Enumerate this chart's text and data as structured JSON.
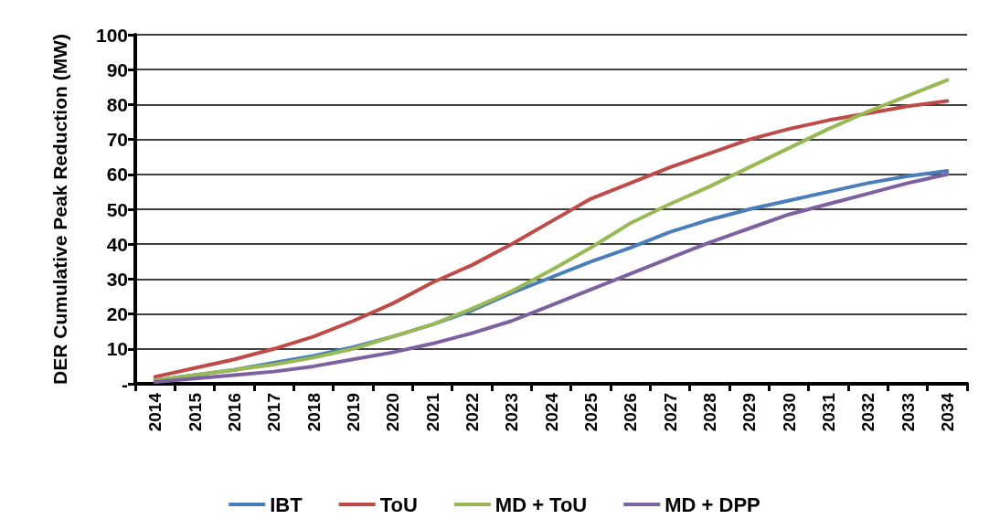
{
  "chart_data": {
    "type": "line",
    "ylabel": "DER Cumulative Peak Reduction (MW)",
    "categories": [
      "2014",
      "2015",
      "2016",
      "2017",
      "2018",
      "2019",
      "2020",
      "2021",
      "2022",
      "2023",
      "2024",
      "2025",
      "2026",
      "2027",
      "2028",
      "2029",
      "2030",
      "2031",
      "2032",
      "2033",
      "2034"
    ],
    "series": [
      {
        "name": "IBT",
        "color": "#4a7ebb",
        "values": [
          1,
          2.5,
          4,
          6,
          8,
          10.5,
          13.5,
          17,
          21,
          26,
          30.5,
          35,
          39,
          43.5,
          47,
          50,
          52.5,
          55,
          57.5,
          59.5,
          61
        ]
      },
      {
        "name": "ToU",
        "color": "#be4b48",
        "values": [
          2,
          4.5,
          7,
          10,
          13.5,
          18,
          23,
          29,
          34,
          40,
          46.5,
          53,
          57.5,
          62,
          66,
          70,
          73,
          75.5,
          77.5,
          79.5,
          81
        ]
      },
      {
        "name": "MD + ToU",
        "color": "#98b954",
        "values": [
          1,
          2.5,
          4,
          5.5,
          7.5,
          10,
          13.5,
          17,
          21.5,
          26.5,
          32.5,
          39,
          46,
          51.5,
          56.5,
          62,
          67.5,
          73,
          78,
          82.5,
          87
        ]
      },
      {
        "name": "MD + DPP",
        "color": "#7d60a0",
        "values": [
          0.5,
          1.5,
          2.5,
          3.5,
          5,
          7,
          9,
          11.5,
          14.5,
          18,
          22.5,
          27,
          31.5,
          36,
          40.5,
          44.5,
          48.5,
          51.5,
          54.5,
          57.5,
          60
        ]
      }
    ],
    "ylim": [
      0,
      100
    ],
    "yticks": [
      {
        "value": 0,
        "label": "-"
      },
      10,
      20,
      30,
      40,
      50,
      60,
      70,
      80,
      90,
      100
    ],
    "grid": "y",
    "legend": "bottom",
    "marker": "none",
    "line_style": "solid"
  }
}
